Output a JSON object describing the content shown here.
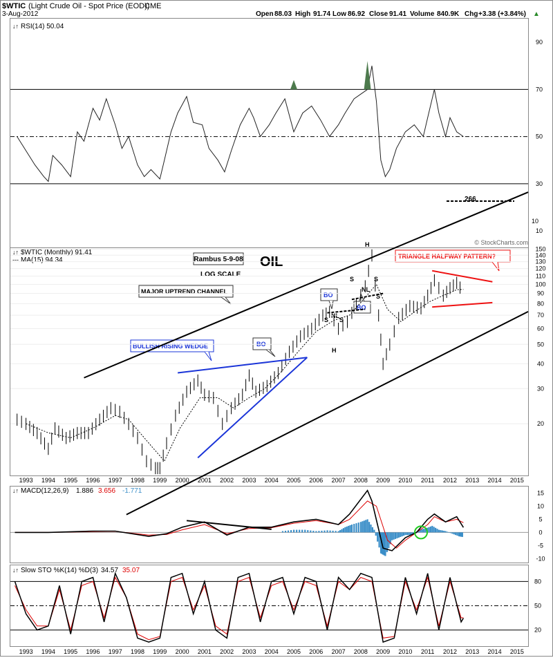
{
  "header": {
    "symbol": "$WTIC",
    "description": "(Light Crude Oil - Spot Price (EOD))",
    "exchange": "CME",
    "date": "3-Aug-2012",
    "open_label": "Open",
    "open": "88.03",
    "high_label": "High",
    "high": "91.74",
    "low_label": "Low",
    "low": "86.92",
    "close_label": "Close",
    "close": "91.41",
    "volume_label": "Volume",
    "volume": "840.9K",
    "chg_label": "Chg",
    "chg": "+3.38 (+3.84%)",
    "watermark": "© StockCharts.com"
  },
  "colors": {
    "price": "#000000",
    "ma": "#000000",
    "grid": "#dddddd",
    "wedge": "#1a34d8",
    "triangle": "#ee1111",
    "macd": "#000000",
    "signal": "#dd0000",
    "hist": "#3a8ec8",
    "k": "#000000",
    "d": "#dd0000",
    "circle": "#22cc22",
    "rsi_fill": "#4d7a4d"
  },
  "chart_data": [
    {
      "type": "line",
      "name": "rsi",
      "title": "RSI(14) 50.04",
      "yticks": [
        90,
        70,
        50,
        30,
        10
      ],
      "ylim": [
        3,
        100
      ],
      "levels": [
        70,
        50,
        30
      ],
      "series": [
        {
          "name": "RSI(14)",
          "x": [
            1992.6,
            1993.0,
            1993.4,
            1993.8,
            1994.0,
            1994.2,
            1994.6,
            1995.0,
            1995.3,
            1995.6,
            1996.0,
            1996.3,
            1996.6,
            1997.0,
            1997.3,
            1997.6,
            1998.0,
            1998.3,
            1998.6,
            1999.0,
            1999.2,
            1999.5,
            1999.8,
            2000.2,
            2000.5,
            2000.9,
            2001.2,
            2001.6,
            2001.9,
            2002.2,
            2002.6,
            2003.0,
            2003.2,
            2003.5,
            2003.9,
            2004.2,
            2004.6,
            2005.0,
            2005.4,
            2005.8,
            2006.2,
            2006.6,
            2007.0,
            2007.3,
            2007.7,
            2008.0,
            2008.3,
            2008.5,
            2008.7,
            2008.9,
            2009.1,
            2009.3,
            2009.6,
            2010.0,
            2010.4,
            2010.8,
            2011.0,
            2011.3,
            2011.5,
            2011.8,
            2012.0,
            2012.3,
            2012.6
          ],
          "values": [
            50,
            44,
            38,
            33,
            31,
            42,
            38,
            33,
            52,
            48,
            62,
            57,
            66,
            55,
            45,
            50,
            38,
            33,
            36,
            32,
            40,
            52,
            60,
            67,
            56,
            55,
            45,
            40,
            35,
            44,
            55,
            62,
            58,
            50,
            55,
            60,
            66,
            52,
            60,
            63,
            57,
            50,
            55,
            60,
            66,
            68,
            70,
            80,
            65,
            40,
            33,
            36,
            45,
            52,
            55,
            50,
            58,
            70,
            60,
            50,
            58,
            52,
            50
          ]
        }
      ],
      "overbought_peaks": [
        "2005",
        "2008"
      ]
    },
    {
      "type": "line",
      "name": "price",
      "title": "$WTIC (Monthly) 91.41",
      "subtitle": "MA(15) 94.34",
      "scale": "log",
      "yticks": [
        266,
        150,
        140,
        130,
        120,
        110,
        100,
        90,
        80,
        70,
        60,
        50,
        40,
        30,
        20,
        10
      ],
      "xticks": [
        "1993",
        "1994",
        "1995",
        "1996",
        "1997",
        "1998",
        "1999",
        "2000",
        "2001",
        "2002",
        "2003",
        "2004",
        "2005",
        "2006",
        "2007",
        "2008",
        "2009",
        "2010",
        "2011",
        "2012",
        "2013",
        "2014",
        "2015"
      ],
      "xlim": [
        1992.3,
        2015.5
      ],
      "series": [
        {
          "name": "$WTIC (Monthly)",
          "x": [
            1992.6,
            1993.0,
            1993.5,
            1994.0,
            1994.3,
            1994.8,
            1995.3,
            1995.8,
            1996.3,
            1996.8,
            1997.2,
            1997.6,
            1998.0,
            1998.4,
            1998.8,
            1999.0,
            1999.3,
            1999.7,
            2000.2,
            2000.7,
            2001.0,
            2001.4,
            2001.8,
            2002.2,
            2002.7,
            2003.0,
            2003.3,
            2003.8,
            2004.3,
            2004.8,
            2005.3,
            2005.8,
            2006.3,
            2006.6,
            2007.0,
            2007.4,
            2007.8,
            2008.2,
            2008.5,
            2008.8,
            2009.0,
            2009.3,
            2009.7,
            2010.2,
            2010.7,
            2011.0,
            2011.3,
            2011.7,
            2012.0,
            2012.3,
            2012.6
          ],
          "values": [
            21,
            20,
            18,
            15,
            19,
            17,
            18,
            18,
            21,
            24,
            23,
            20,
            17,
            13,
            12,
            12,
            16,
            22,
            29,
            33,
            28,
            27,
            20,
            24,
            28,
            35,
            29,
            31,
            36,
            46,
            55,
            60,
            70,
            73,
            60,
            65,
            80,
            98,
            140,
            70,
            40,
            50,
            68,
            78,
            76,
            88,
            105,
            88,
            96,
            102,
            91.4
          ]
        },
        {
          "name": "MA(15)",
          "x": [
            1993.0,
            1994.0,
            1995.0,
            1996.0,
            1997.0,
            1997.6,
            1998.5,
            1999.2,
            1999.9,
            2000.8,
            2001.6,
            2002.3,
            2003.0,
            2003.7,
            2004.4,
            2005.2,
            2006.0,
            2006.8,
            2007.5,
            2008.2,
            2008.7,
            2009.2,
            2009.8,
            2010.5,
            2011.1,
            2011.7,
            2012.3,
            2012.6
          ],
          "values": [
            20,
            18,
            17,
            19,
            22,
            21,
            16,
            13,
            19,
            27,
            27,
            24,
            27,
            30,
            36,
            46,
            58,
            66,
            70,
            86,
            100,
            75,
            65,
            74,
            82,
            88,
            94,
            94.3
          ]
        }
      ],
      "annotations": [
        "Rambus 5-9-08",
        "LOG SCALE",
        "OIL",
        "MAJOR UPTREND CHANNEL",
        "BULLISH RISING WEDGE",
        "BO",
        "BO",
        "BO",
        "TRIANGLE HALFWAY PATTERN?",
        "H",
        "S",
        "S",
        "NL",
        "S",
        "S",
        "H",
        "NL",
        "S"
      ],
      "channel": {
        "upper": [
          [
            1995.6,
            34
          ],
          [
            2015.5,
            290
          ]
        ],
        "lower": [
          [
            1997.5,
            7
          ],
          [
            2015.5,
            73
          ]
        ]
      },
      "target_label": "266"
    },
    {
      "type": "line",
      "name": "macd",
      "title": "MACD(12,26,9)",
      "values_text": [
        "1.886",
        "3.656",
        "-1.771"
      ],
      "yticks": [
        15,
        10,
        5,
        0,
        -5,
        -10
      ],
      "ylim": [
        -11.5,
        17.5
      ],
      "series": [
        {
          "name": "MACD",
          "x": [
            1992.5,
            1994.0,
            1996.0,
            1997.0,
            1998.5,
            1999.3,
            2000.0,
            2001.0,
            2002.0,
            2003.0,
            2004.0,
            2005.0,
            2006.0,
            2007.0,
            2007.5,
            2008.3,
            2008.5,
            2009.0,
            2009.4,
            2010.0,
            2010.5,
            2011.0,
            2011.3,
            2011.8,
            2012.3,
            2012.6
          ],
          "values": [
            0,
            0,
            0.5,
            0.5,
            -1.5,
            -0.5,
            2,
            4,
            -1,
            2,
            2,
            4,
            5,
            3,
            7,
            16,
            12,
            -6,
            -7,
            -2,
            0,
            5,
            7,
            4,
            6,
            1.9
          ]
        },
        {
          "name": "Signal",
          "x": [
            1992.5,
            1994.0,
            1996.0,
            1997.0,
            1998.5,
            1999.3,
            2000.0,
            2001.0,
            2002.0,
            2003.0,
            2004.0,
            2005.0,
            2006.0,
            2007.0,
            2007.5,
            2008.3,
            2008.7,
            2009.2,
            2009.6,
            2010.0,
            2010.5,
            2011.0,
            2011.3,
            2011.8,
            2012.3,
            2012.6
          ],
          "values": [
            0,
            0,
            0.3,
            0.4,
            -1,
            -0.8,
            1,
            3,
            -0.5,
            1.5,
            1.8,
            3.5,
            4.5,
            3,
            5,
            12,
            10,
            -3,
            -6,
            -3,
            0,
            3,
            6,
            4,
            5,
            3.7
          ]
        }
      ],
      "histogram": {
        "x": [
          2004.5,
          2005.0,
          2005.5,
          2006.0,
          2006.5,
          2007.0,
          2007.3,
          2007.6,
          2008.0,
          2008.3,
          2008.6,
          2008.9,
          2009.1,
          2009.4,
          2009.7,
          2010.0,
          2010.3,
          2010.6,
          2010.9,
          2011.2,
          2011.5,
          2011.8,
          2012.1,
          2012.4,
          2012.6
        ],
        "values": [
          0.5,
          1,
          1,
          0.5,
          0.8,
          0.5,
          2,
          3,
          4,
          5,
          1,
          -8,
          -9,
          -3,
          -2,
          -1,
          -1,
          1,
          1.5,
          2.5,
          1,
          0.5,
          -0.5,
          -1.5,
          -1.8
        ]
      }
    },
    {
      "type": "line",
      "name": "stochastic",
      "title": "Slow STO %K(14) %D(3)",
      "values_text": [
        "34.57",
        "35.07"
      ],
      "yticks": [
        80,
        50,
        20
      ],
      "ylim": [
        0,
        100
      ],
      "series": [
        {
          "name": "%K",
          "x": [
            1992.5,
            1993.0,
            1993.5,
            1994.0,
            1994.5,
            1995.0,
            1995.5,
            1996.0,
            1996.5,
            1997.0,
            1997.5,
            1998.0,
            1998.5,
            1999.0,
            1999.5,
            2000.0,
            2000.5,
            2001.0,
            2001.5,
            2002.0,
            2002.5,
            2003.0,
            2003.5,
            2004.0,
            2004.5,
            2005.0,
            2005.5,
            2006.0,
            2006.5,
            2007.0,
            2007.5,
            2008.0,
            2008.5,
            2009.0,
            2009.5,
            2010.0,
            2010.5,
            2011.0,
            2011.5,
            2012.0,
            2012.5,
            2012.6
          ],
          "values": [
            80,
            40,
            20,
            25,
            75,
            15,
            80,
            85,
            30,
            90,
            60,
            10,
            5,
            10,
            85,
            90,
            40,
            80,
            20,
            10,
            85,
            90,
            30,
            80,
            85,
            40,
            85,
            80,
            20,
            85,
            70,
            90,
            85,
            5,
            10,
            85,
            40,
            90,
            20,
            85,
            30,
            34.6
          ]
        },
        {
          "name": "%D",
          "x": [
            1992.5,
            1993.0,
            1993.5,
            1994.0,
            1994.5,
            1995.0,
            1995.5,
            1996.0,
            1996.5,
            1997.0,
            1997.5,
            1998.0,
            1998.5,
            1999.0,
            1999.5,
            2000.0,
            2000.5,
            2001.0,
            2001.5,
            2002.0,
            2002.5,
            2003.0,
            2003.5,
            2004.0,
            2004.5,
            2005.0,
            2005.5,
            2006.0,
            2006.5,
            2007.0,
            2007.5,
            2008.0,
            2008.5,
            2009.0,
            2009.5,
            2010.0,
            2010.5,
            2011.0,
            2011.5,
            2012.0,
            2012.5,
            2012.6
          ],
          "values": [
            75,
            45,
            25,
            25,
            70,
            20,
            75,
            80,
            35,
            85,
            60,
            15,
            8,
            12,
            80,
            85,
            45,
            75,
            25,
            15,
            80,
            85,
            35,
            75,
            80,
            45,
            80,
            75,
            25,
            80,
            70,
            85,
            80,
            10,
            12,
            80,
            45,
            85,
            25,
            80,
            35,
            35.1
          ]
        }
      ]
    }
  ]
}
